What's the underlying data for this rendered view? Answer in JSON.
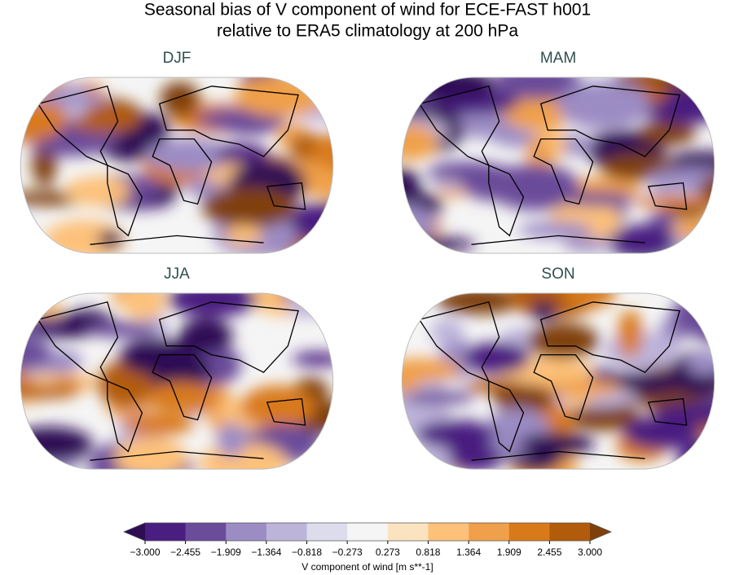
{
  "title": [
    "Seasonal bias of V component of wind for ECE-FAST h001",
    "relative to ERA5 climatology at 200 hPa"
  ],
  "panels": [
    {
      "title": "DJF"
    },
    {
      "title": "MAM"
    },
    {
      "title": "JJA"
    },
    {
      "title": "SON"
    }
  ],
  "colorbar": {
    "label": "V component of wind [m s**-1]",
    "ticks": [
      {
        "value": -3,
        "label": "−3.000"
      },
      {
        "value": -2.455,
        "label": "−2.455"
      },
      {
        "value": -1.909,
        "label": "−1.909"
      },
      {
        "value": -1.364,
        "label": "−1.364"
      },
      {
        "value": -0.818,
        "label": "−0.818"
      },
      {
        "value": -0.273,
        "label": "−0.273"
      },
      {
        "value": 0.273,
        "label": "0.273"
      },
      {
        "value": 0.818,
        "label": "0.818"
      },
      {
        "value": 1.364,
        "label": "1.364"
      },
      {
        "value": 1.909,
        "label": "1.909"
      },
      {
        "value": 2.455,
        "label": "2.455"
      },
      {
        "value": 3,
        "label": "3.000"
      }
    ],
    "colors": [
      "#4a1d80",
      "#6b4c9a",
      "#9b8cc4",
      "#bdb4da",
      "#dcdcec",
      "#f5f5f5",
      "#fbe3c0",
      "#fdc17a",
      "#f0a04a",
      "#d97a1a",
      "#b25c0b"
    ],
    "under_color": "#2d0e54",
    "over_color": "#7f3f0a"
  }
}
